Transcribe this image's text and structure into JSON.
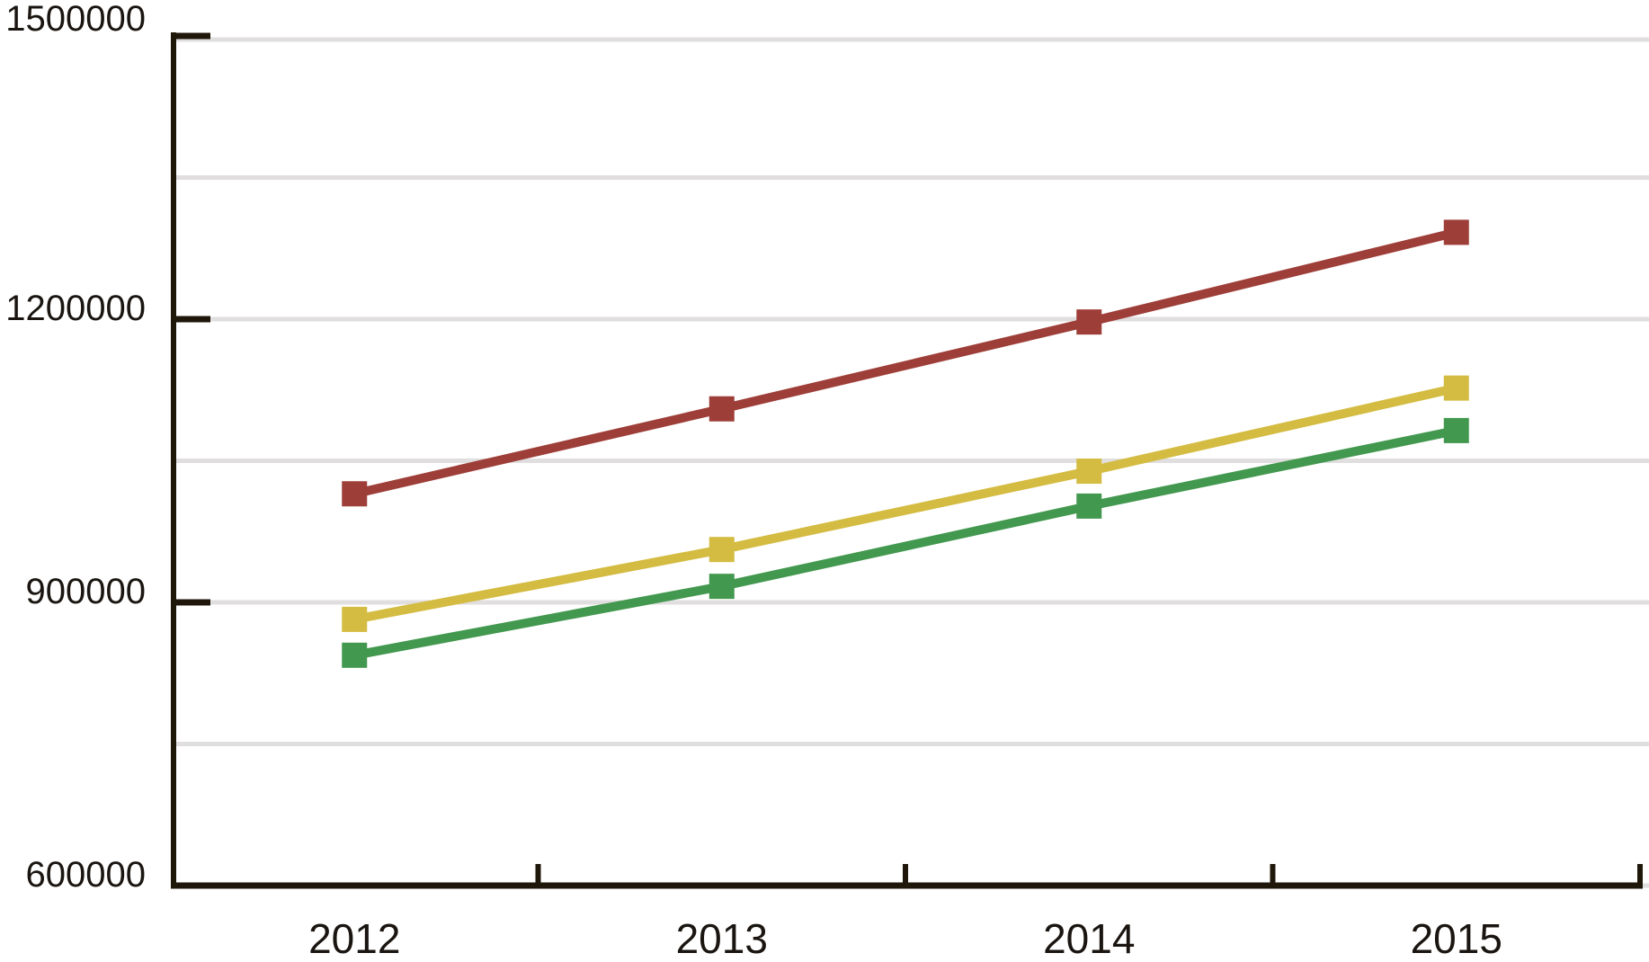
{
  "chart_data": {
    "type": "line",
    "title": "",
    "xlabel": "",
    "ylabel": "",
    "categories": [
      "2012",
      "2013",
      "2014",
      "2015"
    ],
    "series": [
      {
        "id": "series-1",
        "color": "#9E3E38",
        "values": [
          1015000,
          1105000,
          1197000,
          1292000
        ]
      },
      {
        "id": "series-2",
        "color": "#D4BC42",
        "values": [
          882000,
          956000,
          1039000,
          1127000
        ]
      },
      {
        "id": "series-3",
        "color": "#43984F",
        "values": [
          844000,
          917000,
          1002000,
          1082000
        ]
      }
    ],
    "ylim": [
      600000,
      1500000
    ],
    "ytick_labels": [
      "600000",
      "900000",
      "1200000",
      "1500000"
    ],
    "yticks": [
      600000,
      900000,
      1200000,
      1500000
    ],
    "gridline_step": 150000,
    "grid": true,
    "legend_position": "none",
    "marker": "square"
  },
  "style": {
    "axis_color": "#20170B",
    "grid_color": "#E0DEDE",
    "text_color": "#1A1510",
    "background": "#FFFFFF"
  }
}
